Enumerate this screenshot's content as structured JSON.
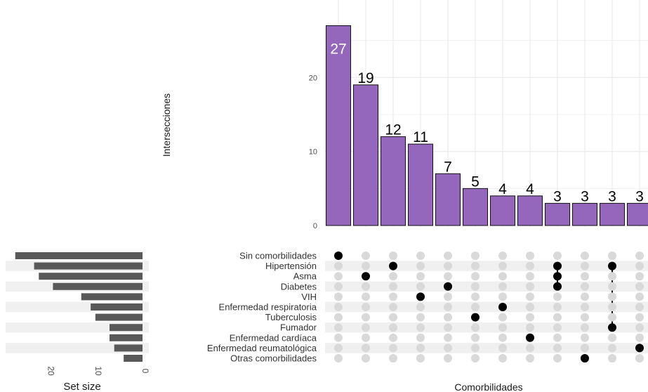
{
  "chart_data": {
    "type": "bar",
    "title": "",
    "xlabel": "Comorbilidades",
    "ylabel": "Intersecciones",
    "set_size_label": "Set size",
    "ylim": [
      0,
      28
    ],
    "y_ticks": [
      0,
      10,
      20
    ],
    "intersections": [
      {
        "value": 27,
        "members": [
          "Sin comorbilidades"
        ]
      },
      {
        "value": 19,
        "members": [
          "Asma"
        ]
      },
      {
        "value": 12,
        "members": [
          "Hipertensión"
        ]
      },
      {
        "value": 11,
        "members": [
          "VIH"
        ]
      },
      {
        "value": 7,
        "members": [
          "Diabetes"
        ]
      },
      {
        "value": 5,
        "members": [
          "Tuberculosis"
        ]
      },
      {
        "value": 4,
        "members": [
          "Enfermedad respiratoria"
        ]
      },
      {
        "value": 4,
        "members": [
          "Enfermedad cardíaca"
        ]
      },
      {
        "value": 3,
        "members": [
          "Hipertensión",
          "Asma",
          "Diabetes"
        ]
      },
      {
        "value": 3,
        "members": [
          "Otras comorbilidades"
        ]
      },
      {
        "value": 3,
        "members": [
          "Hipertensión",
          "Fumador"
        ]
      },
      {
        "value": 3,
        "members": [
          "Enfermedad reumatológica"
        ]
      }
    ],
    "sets": [
      "Sin comorbilidades",
      "Hipertensión",
      "Asma",
      "Diabetes",
      "VIH",
      "Enfermedad respiratoria",
      "Tuberculosis",
      "Fumador",
      "Enfermedad cardíaca",
      "Enfermedad reumatológica",
      "Otras comorbilidades"
    ],
    "set_sizes": [
      27,
      23,
      22,
      19,
      13,
      11,
      10,
      7,
      7,
      6,
      4
    ],
    "set_size_ticks": [
      20,
      10,
      0
    ],
    "set_size_max": 28,
    "colors": {
      "bar_fill": "#9467bd",
      "bar_stroke": "#111111",
      "dot_on": "#000000",
      "dot_off": "#d9d9d9",
      "set_bar": "#595959",
      "stripe": "#f0f0f0",
      "grid": "#ebebeb"
    }
  }
}
